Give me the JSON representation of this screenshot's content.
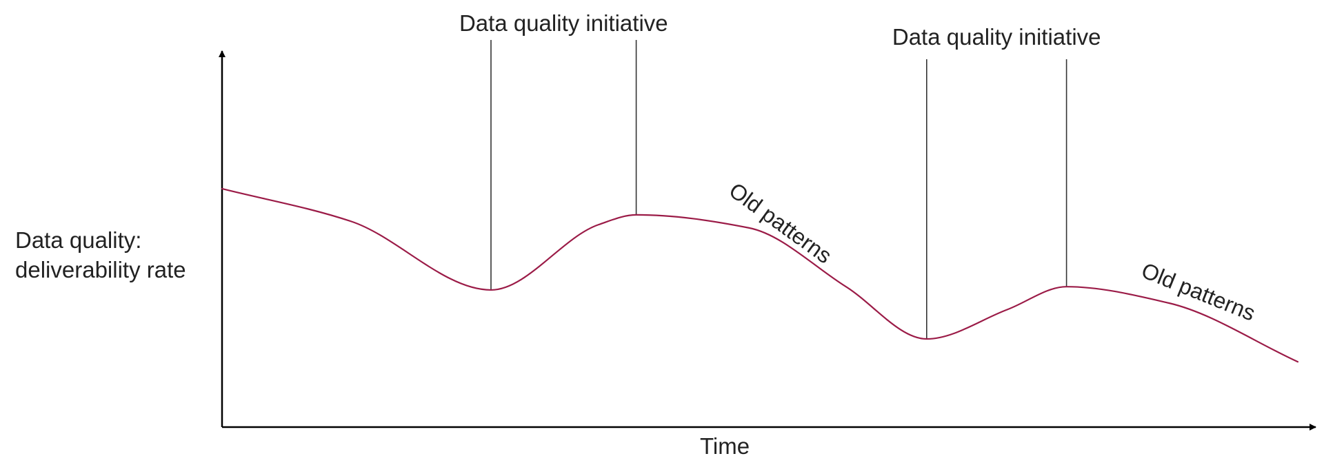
{
  "chart_data": {
    "type": "line",
    "title": "",
    "xlabel": "Time",
    "ylabel_lines": [
      "Data quality:",
      "deliverability rate"
    ],
    "annotations": [
      {
        "text": "Data quality initiative",
        "x_start": 25,
        "x_end": 38.5
      },
      {
        "text": "Data quality initiative",
        "x_start": 65.5,
        "x_end": 78.5
      }
    ],
    "curve_labels": [
      {
        "text": "Old patterns",
        "at_x": 51.5
      },
      {
        "text": "Old patterns",
        "at_x": 90.5
      }
    ],
    "series": [
      {
        "values": [
          {
            "x": 0,
            "y": 73
          },
          {
            "x": 12,
            "y": 63
          },
          {
            "x": 25,
            "y": 42
          },
          {
            "x": 35,
            "y": 62
          },
          {
            "x": 38.5,
            "y": 65
          },
          {
            "x": 49,
            "y": 61
          },
          {
            "x": 58,
            "y": 43
          },
          {
            "x": 65.5,
            "y": 27
          },
          {
            "x": 73,
            "y": 36
          },
          {
            "x": 78.5,
            "y": 43
          },
          {
            "x": 88,
            "y": 38
          },
          {
            "x": 100,
            "y": 20
          }
        ]
      }
    ],
    "xlim": [
      0,
      100
    ],
    "ylim": [
      0,
      100
    ],
    "grid": false,
    "legend": "none",
    "colors": {
      "curve": "#9b1b47",
      "axis": "#000000",
      "annotation_line": "#333333",
      "text": "#222222"
    }
  }
}
